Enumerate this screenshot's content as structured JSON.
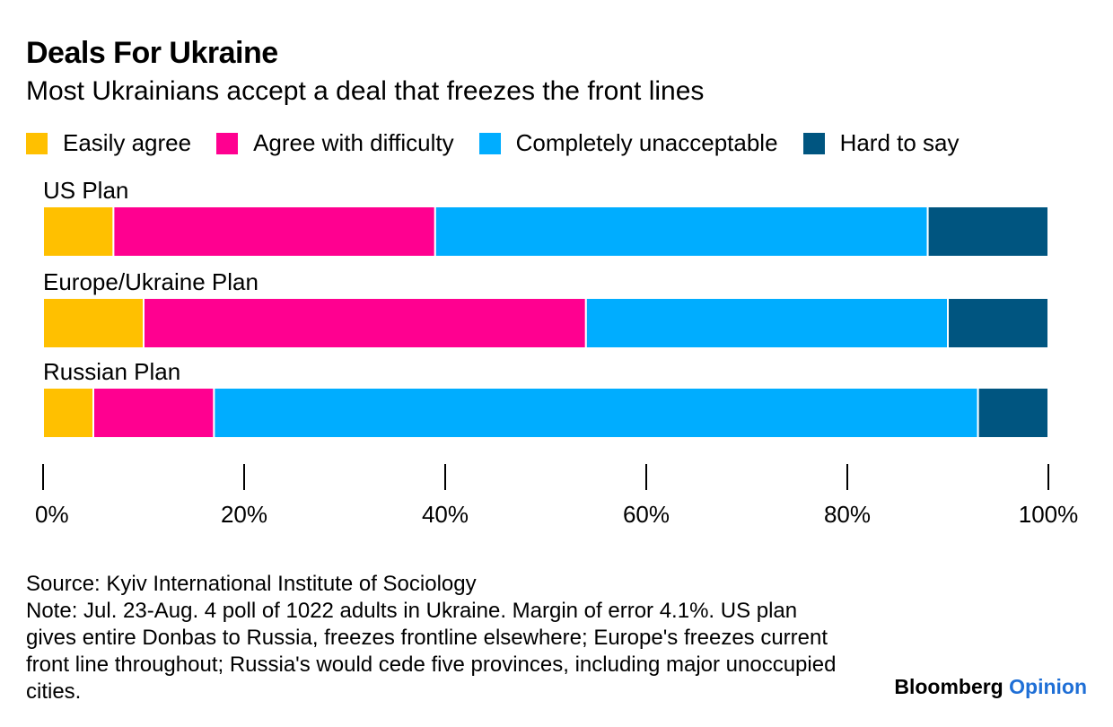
{
  "title": "Deals For Ukraine",
  "subtitle": "Most Ukrainians accept a deal that freezes the front lines",
  "legend": [
    {
      "label": "Easily agree",
      "color": "#FFC000"
    },
    {
      "label": "Agree with difficulty",
      "color": "#FF0090"
    },
    {
      "label": "Completely unacceptable",
      "color": "#00ADFF"
    },
    {
      "label": "Hard to say",
      "color": "#005580"
    }
  ],
  "chart_data": {
    "type": "bar",
    "orientation": "horizontal",
    "stacked": true,
    "categories": [
      "US Plan",
      "Europe/Ukraine Plan",
      "Russian Plan"
    ],
    "series": [
      {
        "name": "Easily agree",
        "color": "#FFC000",
        "values": [
          7,
          10,
          5
        ]
      },
      {
        "name": "Agree with difficulty",
        "color": "#FF0090",
        "values": [
          32,
          44,
          12
        ]
      },
      {
        "name": "Completely unacceptable",
        "color": "#00ADFF",
        "values": [
          49,
          36,
          76
        ]
      },
      {
        "name": "Hard to say",
        "color": "#005580",
        "values": [
          12,
          10,
          7
        ]
      }
    ],
    "xlim": [
      0,
      100
    ],
    "xticks": [
      "0%",
      "20%",
      "40%",
      "60%",
      "80%",
      "100%"
    ],
    "grid": false,
    "legend_position": "top"
  },
  "footer": {
    "source": "Source: Kyiv International Institute of Sociology",
    "note": "Note: Jul. 23-Aug. 4 poll of 1022 adults in Ukraine. Margin of error 4.1%. US plan gives entire Donbas to Russia, freezes frontline elsewhere; Europe's freezes current front line throughout; Russia's would cede five provinces, including major unoccupied cities.",
    "brand_name": "Bloomberg",
    "brand_section": "Opinion"
  }
}
